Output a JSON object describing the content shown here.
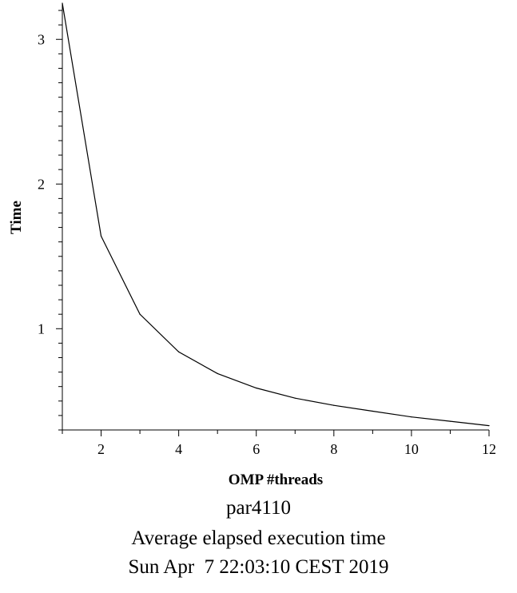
{
  "chart_data": {
    "type": "line",
    "xlabel": "OMP #threads",
    "ylabel": "Time",
    "xlim": [
      1,
      12
    ],
    "ylim": [
      0.3,
      3.25
    ],
    "x_ticks": [
      2,
      4,
      6,
      8,
      10,
      12
    ],
    "y_ticks": [
      1,
      2,
      3
    ],
    "grid": false,
    "series": [
      {
        "x": [
          1,
          2,
          3,
          4,
          5,
          6,
          7,
          8,
          9,
          10,
          11,
          12
        ],
        "values": [
          3.25,
          1.64,
          1.1,
          0.84,
          0.69,
          0.59,
          0.52,
          0.47,
          0.43,
          0.39,
          0.36,
          0.33
        ],
        "color": "#000000"
      }
    ]
  },
  "caption": {
    "line1": "par4110",
    "line2": "Average elapsed execution time",
    "line3": "Sun Apr  7 22:03:10 CEST 2019"
  }
}
